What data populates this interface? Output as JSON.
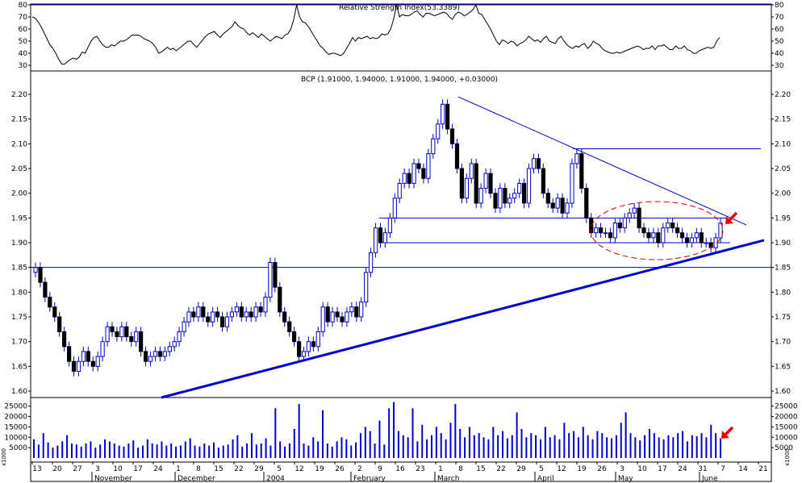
{
  "chart_data": [
    {
      "type": "line",
      "title": "Relative Strength Index(53.3389)",
      "ylim": [
        30,
        80
      ],
      "yticks": [
        30,
        40,
        50,
        60,
        70,
        80
      ],
      "line_color": "#000000",
      "series": [
        {
          "values": [
            70,
            69,
            66,
            62,
            57,
            52,
            47,
            44,
            40,
            35,
            31,
            31,
            33,
            35,
            36,
            35,
            37,
            41,
            40,
            45,
            50,
            53,
            54,
            50,
            47,
            45,
            45,
            47,
            46,
            48,
            50,
            50,
            51,
            53,
            55,
            55,
            55,
            54,
            52,
            51,
            50,
            48,
            45,
            40,
            41,
            43,
            45,
            43,
            44,
            42,
            44,
            46,
            48,
            50,
            50,
            47,
            45,
            48,
            51,
            54,
            56,
            57,
            58,
            55,
            53,
            56,
            58,
            60,
            62,
            66,
            63,
            61,
            60,
            57,
            55,
            57,
            55,
            53,
            56,
            54,
            52,
            50,
            52,
            54,
            53,
            52,
            55,
            56,
            60,
            68,
            80,
            70,
            66,
            65,
            62,
            58,
            54,
            50,
            46,
            44,
            41,
            39,
            40,
            40,
            39,
            38,
            40,
            44,
            48,
            53,
            50,
            53,
            52,
            53,
            54,
            52,
            53,
            52,
            53,
            56,
            55,
            56,
            60,
            68,
            80,
            70,
            72,
            71,
            71,
            72,
            74,
            75,
            72,
            70,
            73,
            73,
            72,
            71,
            72,
            73,
            74,
            73,
            70,
            68,
            72,
            74,
            73,
            71,
            72,
            74,
            76,
            80,
            73,
            72,
            68,
            64,
            60,
            55,
            50,
            47,
            51,
            50,
            48,
            50,
            49,
            46,
            48,
            49,
            51,
            54,
            52,
            50,
            51,
            49,
            52,
            54,
            50,
            49,
            48,
            52,
            54,
            50,
            47,
            45,
            44,
            46,
            45,
            47,
            48,
            44,
            46,
            50,
            48,
            47,
            44,
            42,
            41,
            40,
            40,
            41,
            40,
            41,
            42,
            43,
            44,
            45,
            46,
            45,
            43,
            44,
            44,
            46,
            43,
            46,
            46,
            47,
            45,
            43,
            43,
            46,
            44,
            44,
            46,
            43,
            42,
            40,
            40,
            42,
            43,
            44,
            45,
            44,
            45,
            50,
            53
          ]
        }
      ]
    },
    {
      "type": "candlestick",
      "title": "BCP (1.91000, 1.94000, 1.91000, 1.94000, +0.03000)",
      "ylim": [
        1.58,
        2.2
      ],
      "yticks": [
        1.6,
        1.65,
        1.7,
        1.75,
        1.8,
        1.85,
        1.9,
        1.95,
        2.0,
        2.05,
        2.1,
        2.15,
        2.2
      ],
      "up_color": "#ffffff",
      "down_color": "#000000",
      "wick_color": "#0000cc",
      "close": [
        1.85,
        1.82,
        1.79,
        1.77,
        1.75,
        1.72,
        1.69,
        1.66,
        1.64,
        1.66,
        1.68,
        1.66,
        1.65,
        1.67,
        1.7,
        1.73,
        1.72,
        1.71,
        1.73,
        1.71,
        1.7,
        1.72,
        1.68,
        1.66,
        1.67,
        1.68,
        1.67,
        1.68,
        1.69,
        1.7,
        1.72,
        1.74,
        1.76,
        1.75,
        1.77,
        1.75,
        1.74,
        1.76,
        1.75,
        1.73,
        1.75,
        1.76,
        1.77,
        1.75,
        1.76,
        1.75,
        1.77,
        1.76,
        1.79,
        1.86,
        1.81,
        1.76,
        1.74,
        1.72,
        1.7,
        1.67,
        1.68,
        1.7,
        1.69,
        1.72,
        1.77,
        1.74,
        1.76,
        1.75,
        1.74,
        1.76,
        1.77,
        1.75,
        1.78,
        1.84,
        1.88,
        1.93,
        1.9,
        1.92,
        1.95,
        1.99,
        2.02,
        2.04,
        2.02,
        2.06,
        2.05,
        2.03,
        2.08,
        2.11,
        2.14,
        2.18,
        2.13,
        2.1,
        2.05,
        1.99,
        2.03,
        2.06,
        1.98,
        2.01,
        2.04,
        2.0,
        1.97,
        2.01,
        1.98,
        1.99,
        2.0,
        2.02,
        1.98,
        2.05,
        2.07,
        2.05,
        2.0,
        1.98,
        1.97,
        1.99,
        1.96,
        1.98,
        2.06,
        2.08,
        2.01,
        1.95,
        1.92,
        1.93,
        1.92,
        1.92,
        1.91,
        1.94,
        1.93,
        1.95,
        1.96,
        1.97,
        1.93,
        1.92,
        1.91,
        1.92,
        1.9,
        1.93,
        1.94,
        1.93,
        1.92,
        1.91,
        1.9,
        1.91,
        1.92,
        1.9,
        1.9,
        1.89,
        1.91,
        1.94
      ]
    },
    {
      "type": "bar",
      "title": "",
      "ylabel": "x1000",
      "ylim": [
        0,
        28000
      ],
      "yticks": [
        5000,
        10000,
        15000,
        20000,
        25000
      ],
      "tick_labels": [
        "5000",
        "10000",
        "15000",
        "20000",
        "25000"
      ],
      "bar_color": "#0000cc",
      "values": [
        9000,
        6500,
        12000,
        7500,
        5000,
        6000,
        8000,
        11000,
        7000,
        6500,
        5500,
        7000,
        8000,
        5000,
        6500,
        9000,
        8000,
        7000,
        6000,
        5500,
        7000,
        8500,
        5000,
        6000,
        9000,
        7000,
        6500,
        8000,
        6000,
        7000,
        5500,
        6000,
        8000,
        9500,
        6000,
        5500,
        7000,
        6000,
        7500,
        5000,
        6000,
        6500,
        9000,
        11000,
        5500,
        7000,
        12000,
        6500,
        7000,
        9500,
        6000,
        24000,
        8000,
        5500,
        7000,
        14000,
        26000,
        7000,
        6000,
        10000,
        8000,
        23000,
        7000,
        5500,
        8000,
        10000,
        9000,
        6000,
        7500,
        12000,
        15000,
        13000,
        7000,
        18000,
        6500,
        24000,
        27000,
        13000,
        11000,
        10000,
        24000,
        8000,
        16000,
        9000,
        11000,
        15000,
        12000,
        9000,
        17000,
        26000,
        14000,
        10000,
        15000,
        11000,
        12000,
        10000,
        9000,
        15000,
        11000,
        13000,
        9500,
        11000,
        22000,
        14000,
        10000,
        12000,
        11000,
        9000,
        15000,
        10000,
        11000,
        9000,
        17000,
        12000,
        13000,
        10000,
        15000,
        11000,
        9000,
        13000,
        12000,
        10000,
        9500,
        11000,
        17000,
        22000,
        12000,
        10000,
        8500,
        11000,
        14000,
        12000,
        10000,
        9000,
        11000,
        10000,
        12000,
        13000,
        8000,
        11000,
        10500,
        12000,
        10000,
        16000,
        12000,
        9500
      ]
    }
  ],
  "x_axis": {
    "day_labels": [
      "13",
      "20",
      "27",
      "3",
      "10",
      "17",
      "24",
      "1",
      "8",
      "15",
      "22",
      "29",
      "5",
      "12",
      "19",
      "26",
      "2",
      "9",
      "16",
      "23",
      "1",
      "8",
      "15",
      "22",
      "29",
      "5",
      "12",
      "19",
      "26",
      "3",
      "10",
      "17",
      "24",
      "31",
      "7",
      "14",
      "21"
    ],
    "month_labels": [
      "November",
      "December",
      "2004",
      "February",
      "March",
      "April",
      "May",
      "June"
    ]
  },
  "annotations": {
    "resistance_levels": [
      2.09,
      1.95,
      1.9
    ],
    "support_level": 1.85
  }
}
